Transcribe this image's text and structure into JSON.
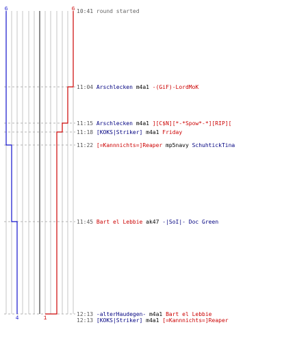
{
  "chart_data": {
    "type": "line",
    "title": "",
    "teams": {
      "blue": {
        "color": "#1010cc",
        "start_score": "6",
        "end_score": "4"
      },
      "red": {
        "color": "#cc0000",
        "start_score": "6",
        "end_score": "1"
      }
    },
    "time_start": "10:41",
    "time_end": "12:13",
    "series": [
      {
        "team": "blue",
        "x": [
          "10:41",
          "11:22",
          "11:45",
          "12:13"
        ],
        "values": [
          6,
          5,
          4,
          4
        ]
      },
      {
        "team": "red",
        "x": [
          "10:41",
          "11:04",
          "11:15",
          "11:18",
          "12:13"
        ],
        "values": [
          6,
          5,
          4,
          3,
          1
        ]
      }
    ]
  },
  "events": [
    {
      "time": "10:41",
      "parts": [
        {
          "text": "round started",
          "color": "gray"
        }
      ]
    },
    {
      "time": "11:04",
      "parts": [
        {
          "text": "Arschlecken",
          "color": "blue"
        },
        {
          "text": " m4a1 ",
          "color": "black"
        },
        {
          "text": "-(GiF)-LordMoK",
          "color": "red"
        }
      ]
    },
    {
      "time": "11:15",
      "parts": [
        {
          "text": "Arschlecken",
          "color": "blue"
        },
        {
          "text": " m4a1 ",
          "color": "black"
        },
        {
          "text": "][C$N][*-*Spow*-*][RIP][",
          "color": "red"
        }
      ]
    },
    {
      "time": "11:18",
      "parts": [
        {
          "text": "[KOKS|Striker]",
          "color": "blue"
        },
        {
          "text": " m4a1 ",
          "color": "black"
        },
        {
          "text": "Friday",
          "color": "red"
        }
      ]
    },
    {
      "time": "11:22",
      "parts": [
        {
          "text": "[=Kannnichts=]Reaper",
          "color": "red"
        },
        {
          "text": " mp5navy ",
          "color": "black"
        },
        {
          "text": "SchuhtickTina",
          "color": "blue"
        }
      ]
    },
    {
      "time": "11:45",
      "parts": [
        {
          "text": "Bart el Lebbie",
          "color": "red"
        },
        {
          "text": " ak47 ",
          "color": "black"
        },
        {
          "text": "-|SoI|- Doc Green",
          "color": "blue"
        }
      ]
    },
    {
      "time": "12:13",
      "parts": [
        {
          "text": "-alterHaudegen-",
          "color": "blue"
        },
        {
          "text": " m4a1 ",
          "color": "black"
        },
        {
          "text": "Bart el Lebbie",
          "color": "red"
        }
      ]
    },
    {
      "time": "12:13",
      "parts": [
        {
          "text": "[KOKS|Striker]",
          "color": "blue"
        },
        {
          "text": " m4a1 ",
          "color": "black"
        },
        {
          "text": "[=Kannnichts=]Reaper",
          "color": "red"
        }
      ]
    }
  ]
}
